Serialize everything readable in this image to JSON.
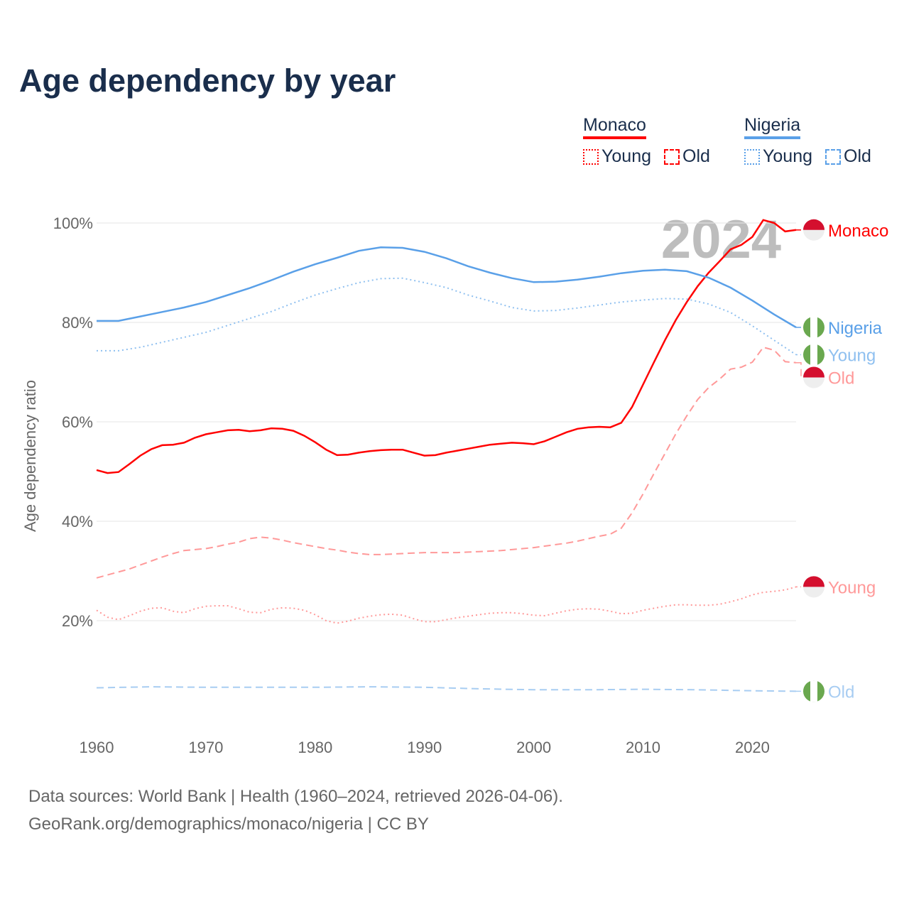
{
  "title": "Age dependency by year",
  "legend": [
    {
      "country": "Monaco",
      "color": "#ff0000",
      "items": [
        "Young",
        "Old"
      ]
    },
    {
      "country": "Nigeria",
      "color": "#5aa0e8",
      "items": [
        "Young",
        "Old"
      ]
    }
  ],
  "footer": {
    "sources": "Data sources: World Bank | Health (1960–2024, retrieved 2026-04-06).",
    "credit": "GeoRank.org/demographics/monaco/nigeria | CC BY"
  },
  "chart_data": {
    "type": "line",
    "title": "Age dependency by year",
    "ylabel": "Age dependency ratio",
    "xlabel": "",
    "xlim": [
      1960,
      2024
    ],
    "ylim": [
      0,
      100
    ],
    "xticks": [
      "1960",
      "1970",
      "1980",
      "1990",
      "2000",
      "2010",
      "2020"
    ],
    "yticks": [
      "20%",
      "40%",
      "60%",
      "80%",
      "100%"
    ],
    "grid": true,
    "year_label": "2024",
    "series": [
      {
        "name": "Monaco",
        "label": "Monaco",
        "country": "Monaco",
        "style": "solid",
        "color": "#ff0000",
        "label_color": "#ff0000",
        "x": [
          1960,
          1961,
          1962,
          1963,
          1964,
          1965,
          1966,
          1967,
          1968,
          1969,
          1970,
          1971,
          1972,
          1973,
          1974,
          1975,
          1976,
          1977,
          1978,
          1979,
          1980,
          1981,
          1982,
          1983,
          1984,
          1985,
          1986,
          1987,
          1988,
          1989,
          1990,
          1991,
          1992,
          1993,
          1994,
          1995,
          1996,
          1997,
          1998,
          1999,
          2000,
          2001,
          2002,
          2003,
          2004,
          2005,
          2006,
          2007,
          2008,
          2009,
          2010,
          2011,
          2012,
          2013,
          2014,
          2015,
          2016,
          2017,
          2018,
          2019,
          2020,
          2021,
          2022,
          2023,
          2024
        ],
        "y": [
          50.3,
          49.7,
          49.9,
          51.5,
          53.2,
          54.5,
          55.3,
          55.4,
          55.8,
          56.8,
          57.5,
          57.9,
          58.3,
          58.4,
          58.1,
          58.3,
          58.7,
          58.6,
          58.2,
          57.2,
          55.9,
          54.4,
          53.3,
          53.4,
          53.8,
          54.1,
          54.3,
          54.4,
          54.4,
          53.8,
          53.2,
          53.3,
          53.8,
          54.2,
          54.6,
          55.0,
          55.4,
          55.6,
          55.8,
          55.7,
          55.5,
          56.1,
          57.0,
          57.9,
          58.6,
          58.9,
          59.0,
          58.9,
          59.8,
          63.0,
          67.5,
          72.0,
          76.4,
          80.5,
          84.1,
          87.3,
          90.0,
          92.3,
          94.7,
          95.6,
          97.2,
          100.6,
          100.0,
          98.3,
          98.6
        ]
      },
      {
        "name": "Monaco Old",
        "label": "Old",
        "country": "Monaco",
        "style": "dashed",
        "color": "#ff9999",
        "label_color": "#ff9999",
        "x": [
          1960,
          1961,
          1962,
          1963,
          1964,
          1965,
          1966,
          1967,
          1968,
          1969,
          1970,
          1971,
          1972,
          1973,
          1974,
          1975,
          1976,
          1977,
          1978,
          1979,
          1980,
          1981,
          1982,
          1983,
          1984,
          1985,
          1986,
          1987,
          1988,
          1989,
          1990,
          1991,
          1992,
          1993,
          1994,
          1995,
          1996,
          1997,
          1998,
          1999,
          2000,
          2001,
          2002,
          2003,
          2004,
          2005,
          2006,
          2007,
          2008,
          2009,
          2010,
          2011,
          2012,
          2013,
          2014,
          2015,
          2016,
          2017,
          2018,
          2019,
          2020,
          2021,
          2022,
          2023,
          2024
        ],
        "y": [
          28.6,
          29.2,
          29.8,
          30.4,
          31.2,
          32.0,
          32.8,
          33.5,
          34.1,
          34.3,
          34.5,
          34.9,
          35.4,
          35.8,
          36.5,
          36.8,
          36.6,
          36.2,
          35.7,
          35.3,
          34.9,
          34.5,
          34.2,
          33.8,
          33.5,
          33.3,
          33.3,
          33.4,
          33.5,
          33.6,
          33.7,
          33.7,
          33.7,
          33.7,
          33.8,
          33.9,
          34.0,
          34.1,
          34.3,
          34.5,
          34.7,
          35.0,
          35.3,
          35.6,
          36.0,
          36.5,
          37.0,
          37.4,
          38.6,
          41.7,
          45.5,
          49.6,
          53.6,
          57.6,
          61.2,
          64.5,
          66.9,
          68.6,
          70.6,
          71.0,
          72.0,
          75.0,
          74.4,
          72.1,
          71.9
        ]
      },
      {
        "name": "Monaco Young",
        "label": "Young",
        "country": "Monaco",
        "style": "dotted",
        "color": "#ff9999",
        "label_color": "#ff9999",
        "x": [
          1960,
          1961,
          1962,
          1963,
          1964,
          1965,
          1966,
          1967,
          1968,
          1969,
          1970,
          1971,
          1972,
          1973,
          1974,
          1975,
          1976,
          1977,
          1978,
          1979,
          1980,
          1981,
          1982,
          1983,
          1984,
          1985,
          1986,
          1987,
          1988,
          1989,
          1990,
          1991,
          1992,
          1993,
          1994,
          1995,
          1996,
          1997,
          1998,
          1999,
          2000,
          2001,
          2002,
          2003,
          2004,
          2005,
          2006,
          2007,
          2008,
          2009,
          2010,
          2011,
          2012,
          2013,
          2014,
          2015,
          2016,
          2017,
          2018,
          2019,
          2020,
          2021,
          2022,
          2023,
          2024
        ],
        "y": [
          22.1,
          20.7,
          20.2,
          21.0,
          21.9,
          22.5,
          22.6,
          21.9,
          21.6,
          22.4,
          22.9,
          23.0,
          23.0,
          22.4,
          21.7,
          21.6,
          22.3,
          22.6,
          22.5,
          22.1,
          21.2,
          20.0,
          19.5,
          19.9,
          20.5,
          20.9,
          21.2,
          21.3,
          21.1,
          20.4,
          19.8,
          19.8,
          20.2,
          20.6,
          20.9,
          21.2,
          21.5,
          21.6,
          21.6,
          21.4,
          21.1,
          21.0,
          21.5,
          22.0,
          22.3,
          22.4,
          22.3,
          21.9,
          21.4,
          21.5,
          22.1,
          22.5,
          22.9,
          23.2,
          23.2,
          23.1,
          23.1,
          23.3,
          23.8,
          24.4,
          25.2,
          25.7,
          25.9,
          26.2,
          26.8
        ]
      },
      {
        "name": "Nigeria",
        "label": "Nigeria",
        "country": "Nigeria",
        "style": "solid",
        "color": "#5aa0e8",
        "label_color": "#5aa0e8",
        "x": [
          1960,
          1962,
          1964,
          1966,
          1968,
          1970,
          1972,
          1974,
          1976,
          1978,
          1980,
          1982,
          1984,
          1986,
          1988,
          1990,
          1992,
          1994,
          1996,
          1998,
          2000,
          2002,
          2004,
          2006,
          2008,
          2010,
          2012,
          2014,
          2016,
          2018,
          2020,
          2022,
          2024
        ],
        "y": [
          80.3,
          80.3,
          81.2,
          82.1,
          83.0,
          84.1,
          85.5,
          86.9,
          88.5,
          90.2,
          91.7,
          93.0,
          94.4,
          95.1,
          95.0,
          94.2,
          92.9,
          91.3,
          90.0,
          88.9,
          88.1,
          88.2,
          88.6,
          89.2,
          89.9,
          90.4,
          90.6,
          90.3,
          89.0,
          87.0,
          84.4,
          81.6,
          79.0
        ]
      },
      {
        "name": "Nigeria Young",
        "label": "Young",
        "country": "Nigeria",
        "style": "dotted",
        "color": "#8fc0f0",
        "label_color": "#8fc0f0",
        "x": [
          1960,
          1962,
          1964,
          1966,
          1968,
          1970,
          1972,
          1974,
          1976,
          1978,
          1980,
          1982,
          1984,
          1986,
          1988,
          1990,
          1992,
          1994,
          1996,
          1998,
          2000,
          2002,
          2004,
          2006,
          2008,
          2010,
          2012,
          2014,
          2016,
          2018,
          2020,
          2022,
          2024
        ],
        "y": [
          74.3,
          74.3,
          75.0,
          76.0,
          77.0,
          78.0,
          79.4,
          80.8,
          82.2,
          83.9,
          85.5,
          86.8,
          88.0,
          88.8,
          88.9,
          88.0,
          87.0,
          85.5,
          84.3,
          83.0,
          82.3,
          82.4,
          82.9,
          83.5,
          84.1,
          84.5,
          84.8,
          84.7,
          83.7,
          82.0,
          79.3,
          76.4,
          73.5
        ]
      },
      {
        "name": "Nigeria Old",
        "label": "Old",
        "country": "Nigeria",
        "style": "dashed",
        "color": "#a8cdf2",
        "label_color": "#a8cdf2",
        "x": [
          1960,
          1965,
          1970,
          1975,
          1980,
          1985,
          1990,
          1995,
          2000,
          2005,
          2010,
          2015,
          2020,
          2024
        ],
        "y": [
          6.5,
          6.7,
          6.6,
          6.6,
          6.6,
          6.7,
          6.6,
          6.3,
          6.1,
          6.1,
          6.2,
          6.1,
          5.9,
          5.8
        ]
      }
    ]
  }
}
